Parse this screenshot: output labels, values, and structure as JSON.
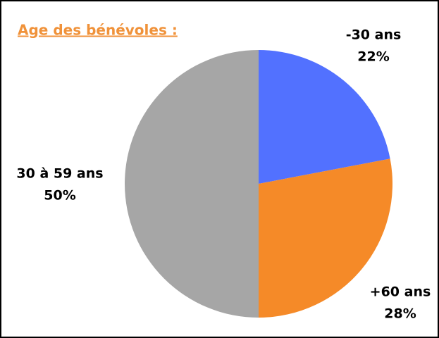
{
  "chart_data": {
    "type": "pie",
    "title": "Age des bénévoles :",
    "categories": [
      "-30 ans",
      "+60 ans",
      "30 à 59 ans"
    ],
    "values": [
      22,
      28,
      50
    ],
    "value_labels": [
      "22%",
      "28%",
      "50%"
    ],
    "colors": [
      "#5271ff",
      "#f58a28",
      "#a6a6a6"
    ]
  }
}
